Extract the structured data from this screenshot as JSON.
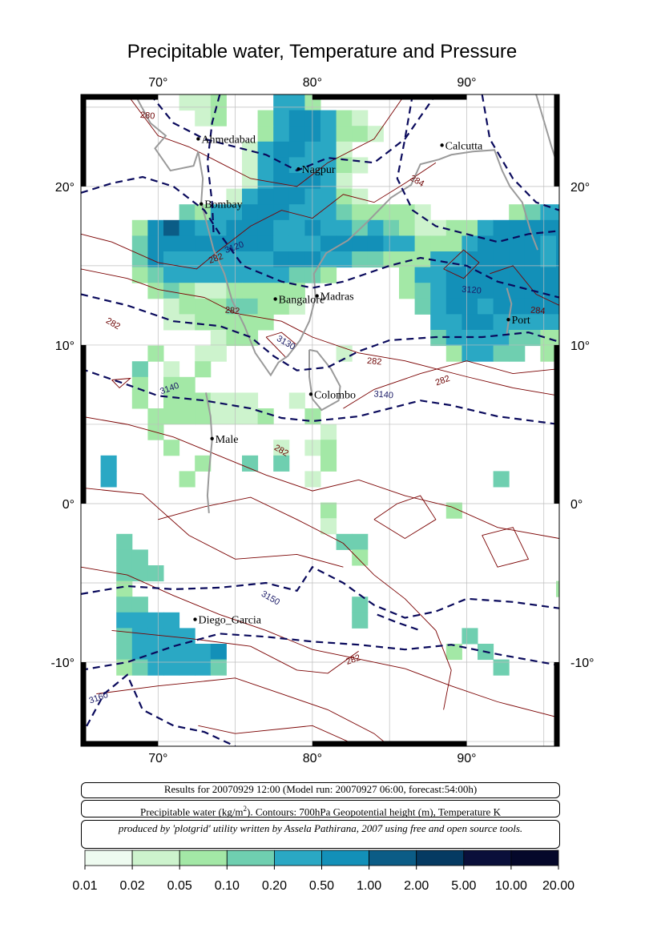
{
  "title": "Precipitable water, Temperature and Pressure",
  "map": {
    "lon_range": [
      65,
      96
    ],
    "lat_range": [
      -15.3,
      25.8
    ],
    "lon_ticks": [
      {
        "value": 70,
        "label": "70°"
      },
      {
        "value": 80,
        "label": "80°"
      },
      {
        "value": 90,
        "label": "90°"
      }
    ],
    "lat_ticks": [
      {
        "value": 20,
        "label": "20°"
      },
      {
        "value": 10,
        "label": "10°"
      },
      {
        "value": 0,
        "label": "0°"
      },
      {
        "value": -10,
        "label": "-10°"
      }
    ],
    "cities": [
      {
        "name": "Ahmedabad",
        "lon": 72.6,
        "lat": 23.0
      },
      {
        "name": "Nagpur",
        "lon": 79.1,
        "lat": 21.1
      },
      {
        "name": "Calcutta",
        "lon": 88.4,
        "lat": 22.6
      },
      {
        "name": "Bombay",
        "lon": 72.8,
        "lat": 18.9
      },
      {
        "name": "Madras",
        "lon": 80.3,
        "lat": 13.1
      },
      {
        "name": "Bangalore",
        "lon": 77.6,
        "lat": 12.9
      },
      {
        "name": "Port",
        "lon": 92.7,
        "lat": 11.6
      },
      {
        "name": "Colombo",
        "lon": 79.9,
        "lat": 6.9
      },
      {
        "name": "Male",
        "lon": 73.5,
        "lat": 4.1
      },
      {
        "name": "Diego_Garcia",
        "lon": 72.4,
        "lat": -7.3
      }
    ],
    "contour_labels": [
      {
        "text": "3120",
        "lon": 75.0,
        "lat": 16.0,
        "color": "#1a1a66"
      },
      {
        "text": "3120",
        "lon": 90.3,
        "lat": 13.3,
        "color": "#1a1a66"
      },
      {
        "text": "3130",
        "lon": 78.2,
        "lat": 10.0,
        "color": "#1a1a66"
      },
      {
        "text": "3140",
        "lon": 70.8,
        "lat": 7.1,
        "color": "#1a1a66"
      },
      {
        "text": "3140",
        "lon": 84.6,
        "lat": 6.7,
        "color": "#1a1a66"
      },
      {
        "text": "3150",
        "lon": 77.2,
        "lat": -6.1,
        "color": "#1a1a66"
      },
      {
        "text": "3160",
        "lon": 66.2,
        "lat": -12.4,
        "color": "#1a1a66"
      },
      {
        "text": "280",
        "lon": 69.3,
        "lat": 24.3,
        "color": "#6b0000"
      },
      {
        "text": "284",
        "lon": 86.7,
        "lat": 20.2,
        "color": "#6b0000"
      },
      {
        "text": "282",
        "lon": 73.8,
        "lat": 15.3,
        "color": "#6b0000"
      },
      {
        "text": "282",
        "lon": 74.8,
        "lat": 12.0,
        "color": "#6b0000"
      },
      {
        "text": "282",
        "lon": 67.0,
        "lat": 11.2,
        "color": "#6b0000"
      },
      {
        "text": "282",
        "lon": 88.5,
        "lat": 7.6,
        "color": "#6b0000"
      },
      {
        "text": "282",
        "lon": 84.0,
        "lat": 8.8,
        "color": "#6b0000"
      },
      {
        "text": "282",
        "lon": 77.9,
        "lat": 3.2,
        "color": "#6b0000"
      },
      {
        "text": "282",
        "lon": 82.7,
        "lat": -10.0,
        "color": "#6b0000"
      },
      {
        "text": "284",
        "lon": 94.6,
        "lat": 12.0,
        "color": "#6b0000"
      }
    ],
    "colors": {
      "temperature_contour": "#7a0000",
      "geopotential_contour": "#0a0a5c",
      "coastline": "#9a9a9a",
      "grid": "#bdbdbd"
    }
  },
  "info": {
    "line1": "Results for 20070929 12:00 (Model run: 20070927 06:00, forecast:54:00h)",
    "line2_a": "Precipitable water (kg/m",
    "line2_sup": "2",
    "line2_b": ").  Contours: 700hPa Geopotential height (m), Temperature K",
    "line3": "produced by 'plotgrid' utility written by Assela Pathirana, 2007 using free and open source tools."
  },
  "colorbar": {
    "labels": [
      "0.01",
      "0.02",
      "0.05",
      "0.10",
      "0.20",
      "0.50",
      "1.00",
      "2.00",
      "5.00",
      "10.00",
      "20.00"
    ],
    "colors": [
      "#eefbf0",
      "#cdf3cd",
      "#a3e8a6",
      "#6fcfb0",
      "#2aa8c4",
      "#1390b8",
      "#0b5c86",
      "#053a62",
      "#0a0f3a",
      "#05082a",
      "#000014"
    ]
  }
}
